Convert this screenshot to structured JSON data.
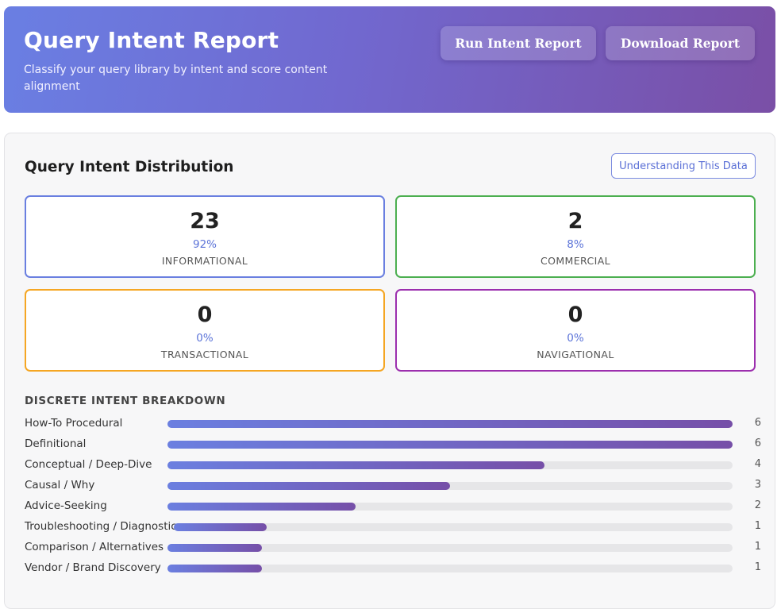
{
  "header": {
    "title": "Query Intent Report",
    "subtitle": "Classify your query library by intent and score content alignment",
    "run_button": "Run Intent Report",
    "download_button": "Download Report"
  },
  "distribution": {
    "title": "Query Intent Distribution",
    "info_button": "Understanding This Data",
    "cards": [
      {
        "count": "23",
        "percent": "92%",
        "label": "INFORMATIONAL",
        "color": "#6a7fe0"
      },
      {
        "count": "2",
        "percent": "8%",
        "label": "COMMERCIAL",
        "color": "#4caf50"
      },
      {
        "count": "0",
        "percent": "0%",
        "label": "TRANSACTIONAL",
        "color": "#f5a623"
      },
      {
        "count": "0",
        "percent": "0%",
        "label": "NAVIGATIONAL",
        "color": "#9c2fae"
      }
    ]
  },
  "breakdown": {
    "title": "DISCRETE INTENT BREAKDOWN",
    "max": 6,
    "items": [
      {
        "label": "How-To Procedural",
        "value": 6
      },
      {
        "label": "Definitional",
        "value": 6
      },
      {
        "label": "Conceptual / Deep-Dive",
        "value": 4
      },
      {
        "label": "Causal / Why",
        "value": 3
      },
      {
        "label": "Advice-Seeking",
        "value": 2
      },
      {
        "label": "Troubleshooting / Diagnostic",
        "value": 1
      },
      {
        "label": "Comparison / Alternatives",
        "value": 1
      },
      {
        "label": "Vendor / Brand Discovery",
        "value": 1
      }
    ]
  }
}
